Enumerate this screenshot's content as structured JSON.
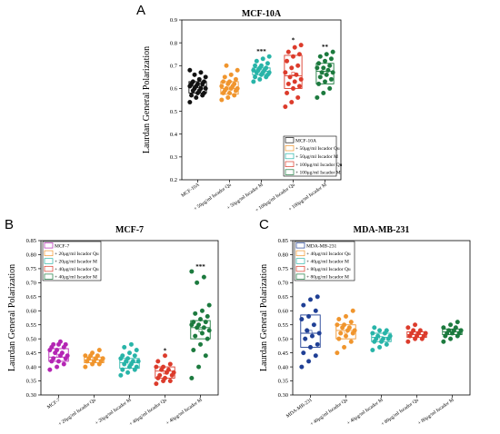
{
  "chart_data": [
    {
      "panel": "A",
      "title": "MCF-10A",
      "type": "box",
      "ylabel": "Laurdan General Polarization",
      "ylim": [
        0.2,
        0.9
      ],
      "yticks": [
        "0.2",
        "0.3",
        "0.4",
        "0.5",
        "0.6",
        "0.7",
        "0.8",
        "0.9"
      ],
      "categories": [
        "MCF-10A",
        "+ 50μg/ml Iscador Qu",
        "+ 50μg/ml Iscador M",
        "+ 100μg/ml Iscador Qu",
        "+ 100μg/ml Iscador M"
      ],
      "legend": [
        "MCF-10A",
        "+ 50μg/ml Iscador Qu",
        "+ 50μg/ml Iscador M",
        "+ 100μg/ml Iscador Qu",
        "+ 100μg/ml Iscador M"
      ],
      "legend_position": "bottom-right",
      "colors": [
        "#111111",
        "#f0952d",
        "#28b4a8",
        "#dc3b2b",
        "#1c7a3e"
      ],
      "significance": [
        "",
        "",
        "***",
        "*",
        "**"
      ],
      "boxes": [
        {
          "q1": 0.58,
          "median": 0.61,
          "q3": 0.63,
          "mean": 0.61
        },
        {
          "q1": 0.575,
          "median": 0.6,
          "q3": 0.63,
          "mean": 0.6
        },
        {
          "q1": 0.66,
          "median": 0.675,
          "q3": 0.69,
          "mean": 0.675
        },
        {
          "q1": 0.6,
          "median": 0.655,
          "q3": 0.745,
          "mean": 0.665
        },
        {
          "q1": 0.62,
          "median": 0.675,
          "q3": 0.71,
          "mean": 0.668
        }
      ],
      "points": [
        [
          0.54,
          0.56,
          0.57,
          0.57,
          0.58,
          0.58,
          0.59,
          0.59,
          0.6,
          0.6,
          0.6,
          0.61,
          0.61,
          0.62,
          0.62,
          0.62,
          0.63,
          0.63,
          0.64,
          0.65,
          0.66,
          0.67,
          0.68
        ],
        [
          0.55,
          0.56,
          0.57,
          0.58,
          0.58,
          0.59,
          0.59,
          0.6,
          0.6,
          0.6,
          0.61,
          0.61,
          0.62,
          0.62,
          0.63,
          0.63,
          0.64,
          0.65,
          0.66,
          0.68,
          0.7
        ],
        [
          0.63,
          0.64,
          0.65,
          0.65,
          0.66,
          0.66,
          0.67,
          0.67,
          0.67,
          0.68,
          0.68,
          0.68,
          0.69,
          0.69,
          0.7,
          0.7,
          0.71,
          0.72,
          0.73,
          0.74
        ],
        [
          0.52,
          0.54,
          0.56,
          0.58,
          0.6,
          0.61,
          0.62,
          0.63,
          0.64,
          0.65,
          0.66,
          0.67,
          0.69,
          0.7,
          0.72,
          0.74,
          0.75,
          0.76,
          0.78,
          0.79
        ],
        [
          0.56,
          0.58,
          0.6,
          0.62,
          0.63,
          0.64,
          0.65,
          0.66,
          0.67,
          0.67,
          0.68,
          0.69,
          0.69,
          0.7,
          0.71,
          0.72,
          0.73,
          0.74,
          0.75,
          0.76
        ]
      ]
    },
    {
      "panel": "B",
      "title": "MCF-7",
      "type": "box",
      "ylabel": "Laurdan General Polarization",
      "ylim": [
        0.3,
        0.85
      ],
      "yticks": [
        "0.30",
        "0.35",
        "0.40",
        "0.45",
        "0.50",
        "0.55",
        "0.60",
        "0.65",
        "0.70",
        "0.75",
        "0.80",
        "0.85"
      ],
      "categories": [
        "MCF-7",
        "+ 20μg/ml Iscador Qu",
        "+ 20μg/ml Iscador M",
        "+ 40μg/ml Iscador Qu",
        "+ 40μg/ml Iscador M"
      ],
      "legend": [
        "MCF-7",
        "+ 20μg/ml Iscador Qu",
        "+ 20μg/ml Iscador M",
        "+ 40μg/ml Iscador Qu",
        "+ 40μg/ml Iscador M"
      ],
      "legend_position": "top-left",
      "colors": [
        "#b425b4",
        "#f0952d",
        "#28b4a8",
        "#dc3b2b",
        "#1c7a3e"
      ],
      "significance": [
        "",
        "",
        "",
        "*",
        "***"
      ],
      "boxes": [
        {
          "q1": 0.42,
          "median": 0.435,
          "q3": 0.465,
          "mean": 0.44
        },
        {
          "q1": 0.415,
          "median": 0.425,
          "q3": 0.435,
          "mean": 0.426
        },
        {
          "q1": 0.395,
          "median": 0.415,
          "q3": 0.43,
          "mean": 0.414
        },
        {
          "q1": 0.36,
          "median": 0.385,
          "q3": 0.4,
          "mean": 0.38
        },
        {
          "q1": 0.5,
          "median": 0.54,
          "q3": 0.565,
          "mean": 0.53
        }
      ],
      "points": [
        [
          0.39,
          0.4,
          0.41,
          0.42,
          0.42,
          0.43,
          0.43,
          0.44,
          0.44,
          0.45,
          0.45,
          0.46,
          0.46,
          0.47,
          0.47,
          0.48,
          0.48,
          0.48,
          0.49
        ],
        [
          0.4,
          0.41,
          0.41,
          0.42,
          0.42,
          0.42,
          0.43,
          0.43,
          0.43,
          0.44,
          0.44,
          0.44,
          0.45,
          0.46
        ],
        [
          0.37,
          0.38,
          0.39,
          0.39,
          0.4,
          0.4,
          0.41,
          0.41,
          0.42,
          0.42,
          0.42,
          0.43,
          0.43,
          0.44,
          0.44,
          0.45,
          0.46,
          0.47,
          0.48
        ],
        [
          0.34,
          0.35,
          0.35,
          0.36,
          0.36,
          0.37,
          0.37,
          0.38,
          0.38,
          0.39,
          0.39,
          0.4,
          0.4,
          0.41,
          0.42,
          0.44
        ],
        [
          0.36,
          0.4,
          0.44,
          0.46,
          0.48,
          0.5,
          0.51,
          0.52,
          0.53,
          0.54,
          0.54,
          0.55,
          0.55,
          0.56,
          0.56,
          0.57,
          0.58,
          0.59,
          0.6,
          0.62,
          0.7,
          0.72,
          0.74
        ]
      ]
    },
    {
      "panel": "C",
      "title": "MDA-MB-231",
      "type": "box",
      "ylabel": "Laurdan General Polarization",
      "ylim": [
        0.3,
        0.85
      ],
      "yticks": [
        "0.30",
        "0.35",
        "0.40",
        "0.45",
        "0.50",
        "0.55",
        "0.60",
        "0.65",
        "0.70",
        "0.75",
        "0.80",
        "0.85"
      ],
      "categories": [
        "MDA-MB-231",
        "+ 40μg/ml Iscador Qu",
        "+ 40μg/ml Iscador M",
        "+ 80μg/ml Iscador Qu",
        "+ 80μg/ml Iscador M"
      ],
      "legend": [
        "MDA-MB-231",
        "+ 40μg/ml Iscador Qu",
        "+ 40μg/ml Iscador M",
        "+ 80μg/ml Iscador Qu",
        "+ 80μg/ml Iscador M"
      ],
      "legend_position": "top-left",
      "colors": [
        "#1f3f95",
        "#f0952d",
        "#28b4a8",
        "#dc3b2b",
        "#1c7a3e"
      ],
      "significance": [
        "",
        "",
        "",
        "",
        ""
      ],
      "boxes": [
        {
          "q1": 0.47,
          "median": 0.52,
          "q3": 0.585,
          "mean": 0.525
        },
        {
          "q1": 0.5,
          "median": 0.53,
          "q3": 0.55,
          "mean": 0.525
        },
        {
          "q1": 0.49,
          "median": 0.505,
          "q3": 0.52,
          "mean": 0.503
        },
        {
          "q1": 0.505,
          "median": 0.515,
          "q3": 0.525,
          "mean": 0.515
        },
        {
          "q1": 0.515,
          "median": 0.525,
          "q3": 0.535,
          "mean": 0.527
        }
      ],
      "points": [
        [
          0.4,
          0.42,
          0.44,
          0.45,
          0.47,
          0.48,
          0.5,
          0.51,
          0.52,
          0.53,
          0.55,
          0.57,
          0.58,
          0.6,
          0.62,
          0.64,
          0.65
        ],
        [
          0.45,
          0.47,
          0.49,
          0.5,
          0.51,
          0.52,
          0.52,
          0.53,
          0.53,
          0.54,
          0.54,
          0.55,
          0.55,
          0.56,
          0.57,
          0.58,
          0.6
        ],
        [
          0.46,
          0.47,
          0.48,
          0.49,
          0.49,
          0.5,
          0.5,
          0.5,
          0.51,
          0.51,
          0.52,
          0.52,
          0.53,
          0.53,
          0.54
        ],
        [
          0.49,
          0.5,
          0.5,
          0.51,
          0.51,
          0.51,
          0.52,
          0.52,
          0.52,
          0.53,
          0.53,
          0.54,
          0.55
        ],
        [
          0.49,
          0.5,
          0.51,
          0.51,
          0.52,
          0.52,
          0.52,
          0.53,
          0.53,
          0.53,
          0.54,
          0.54,
          0.55,
          0.56
        ]
      ]
    }
  ]
}
